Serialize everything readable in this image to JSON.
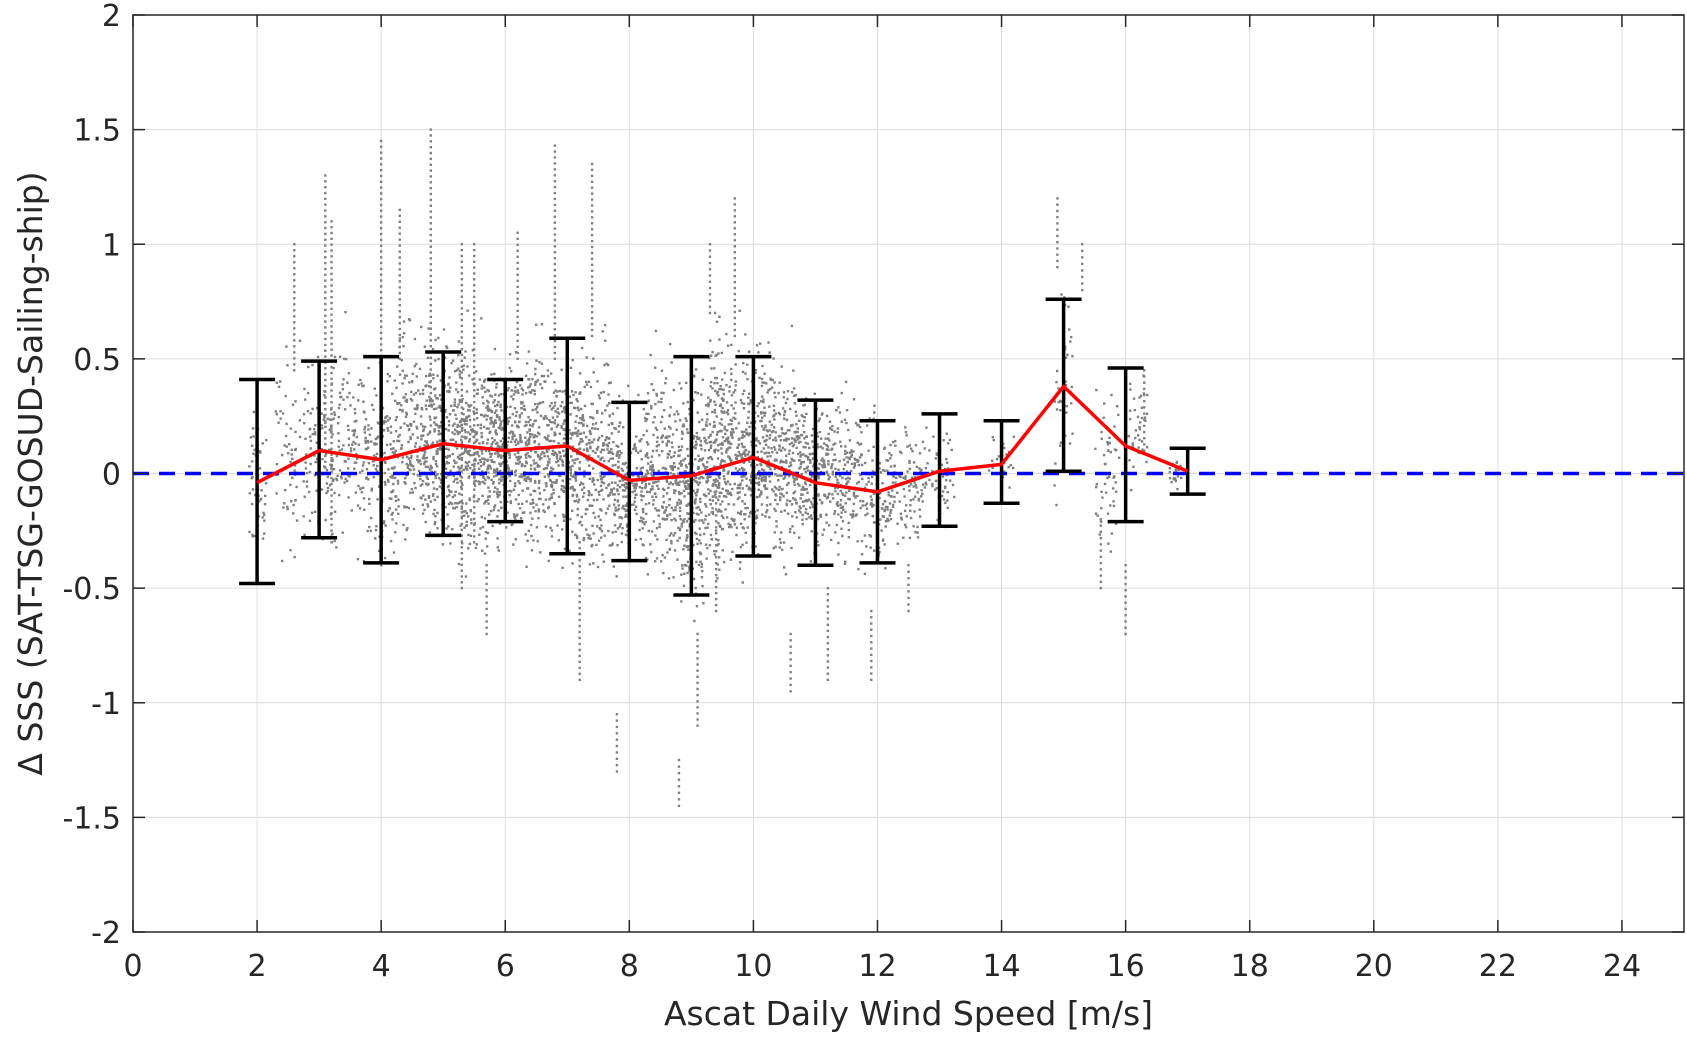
{
  "chart_data": {
    "type": "scatter",
    "title": "",
    "xlabel": "Ascat Daily Wind Speed [m/s]",
    "ylabel": "Δ SSS (SAT-TSG-GOSUD-Sailing-ship)",
    "xlim": [
      0,
      25
    ],
    "ylim": [
      -2,
      2
    ],
    "xticks": [
      0,
      2,
      4,
      6,
      8,
      10,
      12,
      14,
      16,
      18,
      20,
      22,
      24
    ],
    "yticks": [
      -2,
      -1.5,
      -1,
      -0.5,
      0,
      0.5,
      1,
      1.5,
      2
    ],
    "xtick_labels": [
      "0",
      "2",
      "4",
      "6",
      "8",
      "10",
      "12",
      "14",
      "16",
      "18",
      "20",
      "22",
      "24"
    ],
    "ytick_labels": [
      "-2",
      "-1.5",
      "-1",
      "-0.5",
      "0",
      "0.5",
      "1",
      "1.5",
      "2"
    ],
    "grid": true,
    "reference_line": {
      "y": 0,
      "style": "dashed",
      "color": "#0000ff"
    },
    "scatter_color": "#808080",
    "mean_color": "#ff0000",
    "errorbar_color": "#000000",
    "binned_stats": {
      "x": [
        2,
        3,
        4,
        5,
        6,
        7,
        8,
        9,
        10,
        11,
        12,
        13,
        14,
        15,
        16,
        17
      ],
      "mean": [
        -0.04,
        0.1,
        0.06,
        0.13,
        0.1,
        0.12,
        -0.03,
        -0.01,
        0.07,
        -0.04,
        -0.08,
        0.01,
        0.04,
        0.38,
        0.12,
        0.01
      ],
      "upper": [
        0.41,
        0.49,
        0.51,
        0.53,
        0.41,
        0.59,
        0.31,
        0.51,
        0.51,
        0.32,
        0.23,
        0.26,
        0.23,
        0.76,
        0.46,
        0.11
      ],
      "lower": [
        -0.48,
        -0.28,
        -0.39,
        -0.27,
        -0.21,
        -0.35,
        -0.38,
        -0.53,
        -0.36,
        -0.4,
        -0.39,
        -0.23,
        -0.13,
        0.01,
        -0.21,
        -0.09
      ]
    },
    "scatter_clusters": [
      {
        "x": 2.0,
        "y": -0.05,
        "sd": 0.2,
        "wx": 0.15,
        "n": 50
      },
      {
        "x": 2.5,
        "y": 0.1,
        "sd": 0.3,
        "wx": 0.2,
        "n": 60
      },
      {
        "x": 3.0,
        "y": 0.1,
        "sd": 0.25,
        "wx": 0.25,
        "n": 110
      },
      {
        "x": 3.5,
        "y": 0.15,
        "sd": 0.3,
        "wx": 0.25,
        "n": 110
      },
      {
        "x": 4.0,
        "y": 0.05,
        "sd": 0.28,
        "wx": 0.25,
        "n": 150
      },
      {
        "x": 4.5,
        "y": 0.15,
        "sd": 0.3,
        "wx": 0.25,
        "n": 200
      },
      {
        "x": 5.0,
        "y": 0.15,
        "sd": 0.28,
        "wx": 0.25,
        "n": 260
      },
      {
        "x": 5.5,
        "y": 0.1,
        "sd": 0.3,
        "wx": 0.25,
        "n": 280
      },
      {
        "x": 6.0,
        "y": 0.1,
        "sd": 0.25,
        "wx": 0.25,
        "n": 300
      },
      {
        "x": 6.5,
        "y": 0.1,
        "sd": 0.28,
        "wx": 0.25,
        "n": 260
      },
      {
        "x": 7.0,
        "y": 0.1,
        "sd": 0.28,
        "wx": 0.25,
        "n": 260
      },
      {
        "x": 7.5,
        "y": 0.05,
        "sd": 0.3,
        "wx": 0.25,
        "n": 220
      },
      {
        "x": 8.0,
        "y": -0.05,
        "sd": 0.25,
        "wx": 0.25,
        "n": 200
      },
      {
        "x": 8.5,
        "y": 0.0,
        "sd": 0.3,
        "wx": 0.25,
        "n": 230
      },
      {
        "x": 9.0,
        "y": -0.05,
        "sd": 0.32,
        "wx": 0.25,
        "n": 280
      },
      {
        "x": 9.5,
        "y": 0.1,
        "sd": 0.35,
        "wx": 0.25,
        "n": 300
      },
      {
        "x": 10.0,
        "y": 0.1,
        "sd": 0.3,
        "wx": 0.25,
        "n": 280
      },
      {
        "x": 10.5,
        "y": 0.05,
        "sd": 0.28,
        "wx": 0.25,
        "n": 230
      },
      {
        "x": 11.0,
        "y": 0.0,
        "sd": 0.22,
        "wx": 0.25,
        "n": 200
      },
      {
        "x": 11.5,
        "y": 0.0,
        "sd": 0.25,
        "wx": 0.25,
        "n": 160
      },
      {
        "x": 12.0,
        "y": -0.1,
        "sd": 0.2,
        "wx": 0.25,
        "n": 120
      },
      {
        "x": 12.5,
        "y": -0.05,
        "sd": 0.18,
        "wx": 0.25,
        "n": 90
      },
      {
        "x": 13.0,
        "y": 0.02,
        "sd": 0.15,
        "wx": 0.25,
        "n": 50
      },
      {
        "x": 14.0,
        "y": 0.05,
        "sd": 0.1,
        "wx": 0.2,
        "n": 25
      },
      {
        "x": 15.0,
        "y": 0.35,
        "sd": 0.3,
        "wx": 0.15,
        "n": 40
      },
      {
        "x": 15.7,
        "y": 0.05,
        "sd": 0.3,
        "wx": 0.2,
        "n": 50
      },
      {
        "x": 16.2,
        "y": 0.2,
        "sd": 0.15,
        "wx": 0.15,
        "n": 40
      },
      {
        "x": 16.8,
        "y": 0.0,
        "sd": 0.05,
        "wx": 0.1,
        "n": 20
      }
    ],
    "scatter_streaks": [
      [
        2.6,
        0.45,
        1.0
      ],
      [
        3.1,
        0.0,
        1.3
      ],
      [
        3.2,
        -0.3,
        1.1
      ],
      [
        4.0,
        -0.4,
        1.45
      ],
      [
        4.3,
        0.5,
        1.15
      ],
      [
        4.8,
        0.3,
        1.5
      ],
      [
        5.3,
        -0.5,
        1.0
      ],
      [
        5.5,
        -0.3,
        1.0
      ],
      [
        5.7,
        -0.7,
        -0.4
      ],
      [
        6.2,
        0.5,
        1.05
      ],
      [
        6.8,
        0.5,
        1.43
      ],
      [
        7.2,
        -0.9,
        -0.3
      ],
      [
        7.4,
        0.6,
        1.35
      ],
      [
        7.8,
        -1.3,
        -1.05
      ],
      [
        8.8,
        -1.45,
        -1.25
      ],
      [
        9.1,
        -1.1,
        -0.7
      ],
      [
        9.3,
        0.7,
        1.0
      ],
      [
        9.4,
        -0.6,
        0.0
      ],
      [
        9.7,
        0.6,
        1.2
      ],
      [
        10.6,
        -0.95,
        -0.7
      ],
      [
        11.2,
        -0.9,
        -0.5
      ],
      [
        11.9,
        -0.9,
        -0.6
      ],
      [
        12.5,
        -0.6,
        -0.4
      ],
      [
        14.9,
        0.9,
        1.2
      ],
      [
        15.3,
        0.8,
        1.0
      ],
      [
        15.6,
        -0.5,
        -0.2
      ],
      [
        16.0,
        -0.7,
        -0.4
      ],
      [
        16.3,
        0.1,
        0.45
      ]
    ]
  }
}
